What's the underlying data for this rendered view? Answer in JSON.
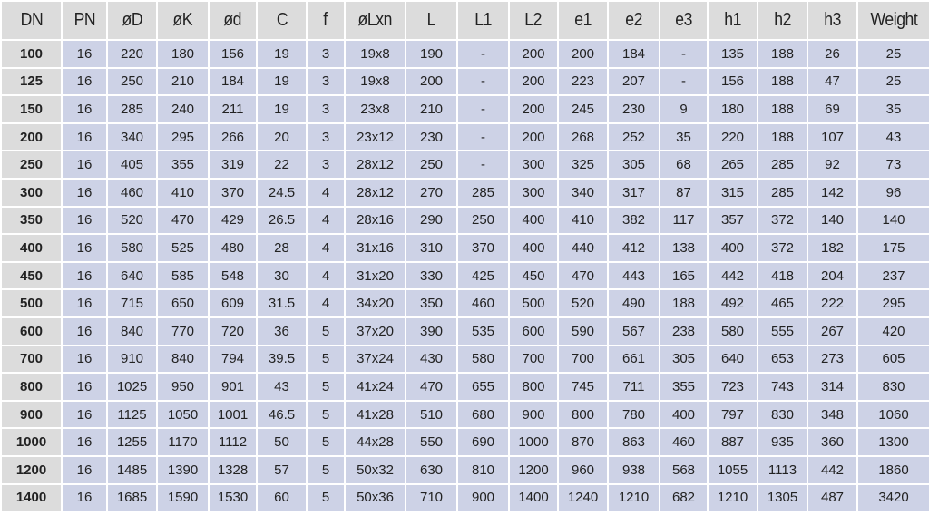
{
  "table": {
    "headers": [
      "DN",
      "PN",
      "øD",
      "øK",
      "ød",
      "C",
      "f",
      "øLxn",
      "L",
      "L1",
      "L2",
      "e1",
      "e2",
      "e3",
      "h1",
      "h2",
      "h3",
      "Weight"
    ],
    "rows": [
      [
        "100",
        "16",
        "220",
        "180",
        "156",
        "19",
        "3",
        "19x8",
        "190",
        "-",
        "200",
        "200",
        "184",
        "-",
        "135",
        "188",
        "26",
        "25"
      ],
      [
        "125",
        "16",
        "250",
        "210",
        "184",
        "19",
        "3",
        "19x8",
        "200",
        "-",
        "200",
        "223",
        "207",
        "-",
        "156",
        "188",
        "47",
        "25"
      ],
      [
        "150",
        "16",
        "285",
        "240",
        "211",
        "19",
        "3",
        "23x8",
        "210",
        "-",
        "200",
        "245",
        "230",
        "9",
        "180",
        "188",
        "69",
        "35"
      ],
      [
        "200",
        "16",
        "340",
        "295",
        "266",
        "20",
        "3",
        "23x12",
        "230",
        "-",
        "200",
        "268",
        "252",
        "35",
        "220",
        "188",
        "107",
        "43"
      ],
      [
        "250",
        "16",
        "405",
        "355",
        "319",
        "22",
        "3",
        "28x12",
        "250",
        "-",
        "300",
        "325",
        "305",
        "68",
        "265",
        "285",
        "92",
        "73"
      ],
      [
        "300",
        "16",
        "460",
        "410",
        "370",
        "24.5",
        "4",
        "28x12",
        "270",
        "285",
        "300",
        "340",
        "317",
        "87",
        "315",
        "285",
        "142",
        "96"
      ],
      [
        "350",
        "16",
        "520",
        "470",
        "429",
        "26.5",
        "4",
        "28x16",
        "290",
        "250",
        "400",
        "410",
        "382",
        "117",
        "357",
        "372",
        "140",
        "140"
      ],
      [
        "400",
        "16",
        "580",
        "525",
        "480",
        "28",
        "4",
        "31x16",
        "310",
        "370",
        "400",
        "440",
        "412",
        "138",
        "400",
        "372",
        "182",
        "175"
      ],
      [
        "450",
        "16",
        "640",
        "585",
        "548",
        "30",
        "4",
        "31x20",
        "330",
        "425",
        "450",
        "470",
        "443",
        "165",
        "442",
        "418",
        "204",
        "237"
      ],
      [
        "500",
        "16",
        "715",
        "650",
        "609",
        "31.5",
        "4",
        "34x20",
        "350",
        "460",
        "500",
        "520",
        "490",
        "188",
        "492",
        "465",
        "222",
        "295"
      ],
      [
        "600",
        "16",
        "840",
        "770",
        "720",
        "36",
        "5",
        "37x20",
        "390",
        "535",
        "600",
        "590",
        "567",
        "238",
        "580",
        "555",
        "267",
        "420"
      ],
      [
        "700",
        "16",
        "910",
        "840",
        "794",
        "39.5",
        "5",
        "37x24",
        "430",
        "580",
        "700",
        "700",
        "661",
        "305",
        "640",
        "653",
        "273",
        "605"
      ],
      [
        "800",
        "16",
        "1025",
        "950",
        "901",
        "43",
        "5",
        "41x24",
        "470",
        "655",
        "800",
        "745",
        "711",
        "355",
        "723",
        "743",
        "314",
        "830"
      ],
      [
        "900",
        "16",
        "1125",
        "1050",
        "1001",
        "46.5",
        "5",
        "41x28",
        "510",
        "680",
        "900",
        "800",
        "780",
        "400",
        "797",
        "830",
        "348",
        "1060"
      ],
      [
        "1000",
        "16",
        "1255",
        "1170",
        "1112",
        "50",
        "5",
        "44x28",
        "550",
        "690",
        "1000",
        "870",
        "863",
        "460",
        "887",
        "935",
        "360",
        "1300"
      ],
      [
        "1200",
        "16",
        "1485",
        "1390",
        "1328",
        "57",
        "5",
        "50x32",
        "630",
        "810",
        "1200",
        "960",
        "938",
        "568",
        "1055",
        "1113",
        "442",
        "1860"
      ],
      [
        "1400",
        "16",
        "1685",
        "1590",
        "1530",
        "60",
        "5",
        "50x36",
        "710",
        "900",
        "1400",
        "1240",
        "1210",
        "682",
        "1210",
        "1305",
        "487",
        "3420"
      ]
    ]
  }
}
